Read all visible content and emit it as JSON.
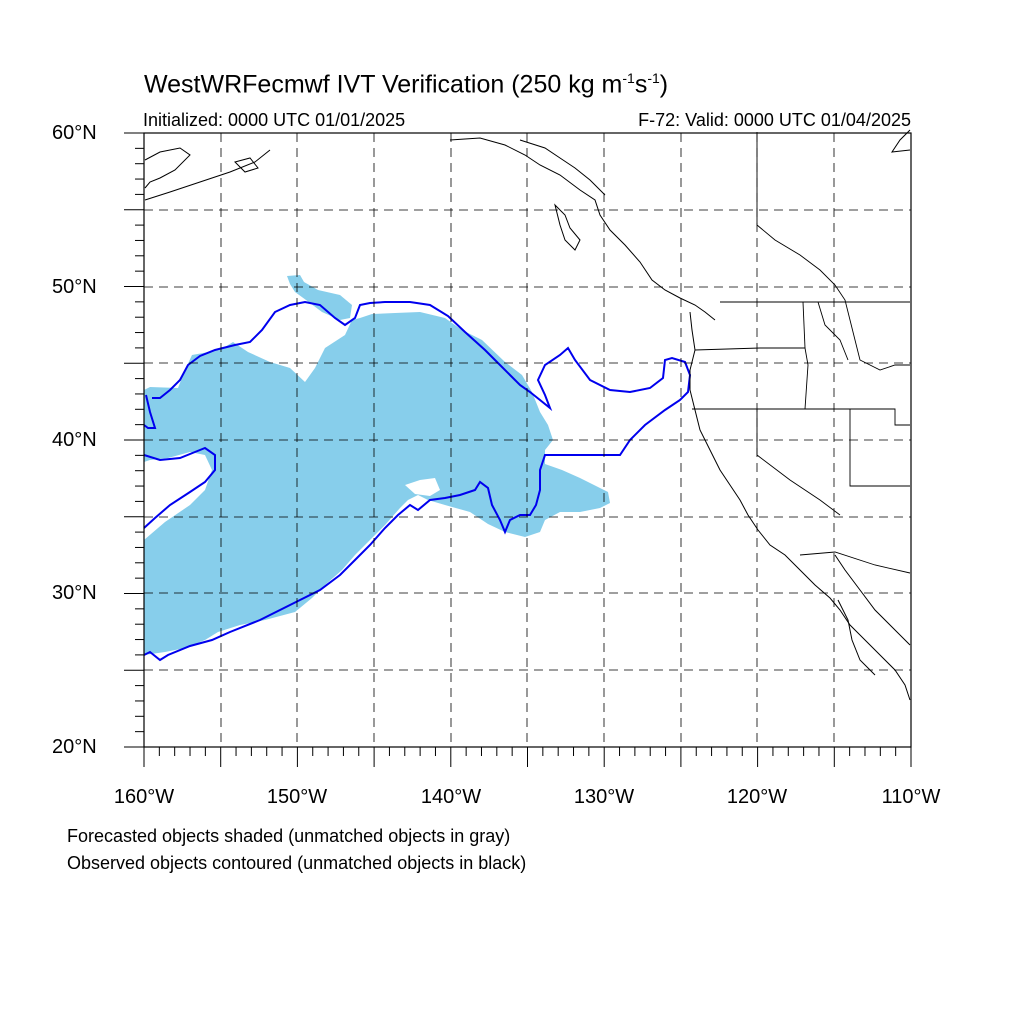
{
  "title": {
    "main": "WestWRFecmwf IVT Verification (250 kg m",
    "exp1": "-1",
    "mid": "s",
    "exp2": "-1",
    "end": ")"
  },
  "initialized": "Initialized: 0000 UTC 01/01/2025",
  "valid": "F-72: Valid: 0000 UTC 01/04/2025",
  "lat_labels": [
    "60°N",
    "50°N",
    "40°N",
    "30°N",
    "20°N"
  ],
  "lon_labels": [
    "160°W",
    "150°W",
    "140°W",
    "130°W",
    "120°W",
    "110°W"
  ],
  "notes": [
    "Forecasted objects shaded (unmatched objects in gray)",
    "Observed objects contoured (unmatched objects in black)"
  ],
  "colors": {
    "forecast_fill": "#87ceeb",
    "observed_contour": "#0000ee",
    "coastline": "#000000",
    "grid": "#000000"
  }
}
